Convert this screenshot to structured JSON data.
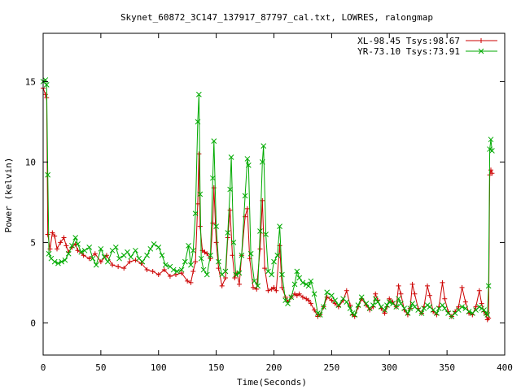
{
  "chart_data": {
    "type": "line",
    "title": "Skynet_60872_3C147_137917_87797_cal.txt, LOWRES, ralongmap",
    "xlabel": "Time(Seconds)",
    "ylabel": "Power (kelvin)",
    "xlim": [
      0,
      400
    ],
    "ylim": [
      -2,
      18
    ],
    "xticks": [
      0,
      50,
      100,
      150,
      200,
      250,
      300,
      350,
      400
    ],
    "yticks": [
      0,
      5,
      10,
      15
    ],
    "legend_position": "top-right",
    "grid": false,
    "series": [
      {
        "name": "XL-98.45 Tsys:98.67",
        "color": "#cc0000",
        "marker": "plus",
        "points": [
          [
            0,
            14.6
          ],
          [
            2,
            14.2
          ],
          [
            3,
            14.0
          ],
          [
            4,
            5.5
          ],
          [
            6,
            4.6
          ],
          [
            8,
            5.6
          ],
          [
            10,
            5.4
          ],
          [
            12,
            4.6
          ],
          [
            15,
            5.0
          ],
          [
            18,
            5.3
          ],
          [
            20,
            4.8
          ],
          [
            22,
            4.4
          ],
          [
            25,
            4.7
          ],
          [
            28,
            4.9
          ],
          [
            30,
            4.5
          ],
          [
            35,
            4.2
          ],
          [
            40,
            4.0
          ],
          [
            45,
            4.3
          ],
          [
            50,
            3.8
          ],
          [
            55,
            4.2
          ],
          [
            60,
            3.6
          ],
          [
            65,
            3.5
          ],
          [
            70,
            3.4
          ],
          [
            75,
            3.8
          ],
          [
            80,
            3.9
          ],
          [
            85,
            3.7
          ],
          [
            90,
            3.3
          ],
          [
            95,
            3.2
          ],
          [
            100,
            3.0
          ],
          [
            105,
            3.3
          ],
          [
            110,
            2.9
          ],
          [
            115,
            3.0
          ],
          [
            120,
            3.1
          ],
          [
            125,
            2.6
          ],
          [
            128,
            2.5
          ],
          [
            130,
            3.2
          ],
          [
            132,
            3.8
          ],
          [
            134,
            7.4
          ],
          [
            135,
            10.5
          ],
          [
            136,
            6.0
          ],
          [
            138,
            4.5
          ],
          [
            140,
            4.4
          ],
          [
            142,
            4.3
          ],
          [
            145,
            4.0
          ],
          [
            147,
            6.2
          ],
          [
            148,
            8.4
          ],
          [
            150,
            5.0
          ],
          [
            152,
            3.4
          ],
          [
            155,
            2.3
          ],
          [
            158,
            2.8
          ],
          [
            160,
            5.3
          ],
          [
            162,
            7.0
          ],
          [
            164,
            4.2
          ],
          [
            166,
            2.8
          ],
          [
            168,
            3.1
          ],
          [
            170,
            2.4
          ],
          [
            172,
            4.2
          ],
          [
            175,
            6.6
          ],
          [
            177,
            7.1
          ],
          [
            179,
            4.0
          ],
          [
            182,
            2.2
          ],
          [
            185,
            2.1
          ],
          [
            188,
            4.6
          ],
          [
            190,
            7.6
          ],
          [
            192,
            3.4
          ],
          [
            195,
            2.0
          ],
          [
            198,
            2.1
          ],
          [
            200,
            2.2
          ],
          [
            202,
            2.0
          ],
          [
            205,
            4.8
          ],
          [
            207,
            2.2
          ],
          [
            210,
            1.6
          ],
          [
            212,
            1.3
          ],
          [
            215,
            1.6
          ],
          [
            218,
            1.8
          ],
          [
            220,
            1.7
          ],
          [
            222,
            1.8
          ],
          [
            225,
            1.6
          ],
          [
            228,
            1.5
          ],
          [
            230,
            1.4
          ],
          [
            232,
            1.2
          ],
          [
            235,
            0.8
          ],
          [
            238,
            0.4
          ],
          [
            240,
            0.5
          ],
          [
            243,
            1.0
          ],
          [
            246,
            1.6
          ],
          [
            250,
            1.4
          ],
          [
            253,
            1.2
          ],
          [
            256,
            1.0
          ],
          [
            260,
            1.4
          ],
          [
            263,
            2.0
          ],
          [
            266,
            1.1
          ],
          [
            268,
            0.5
          ],
          [
            270,
            0.4
          ],
          [
            273,
            1.0
          ],
          [
            276,
            1.5
          ],
          [
            280,
            1.1
          ],
          [
            283,
            0.8
          ],
          [
            286,
            1.0
          ],
          [
            288,
            1.8
          ],
          [
            290,
            1.4
          ],
          [
            293,
            0.9
          ],
          [
            296,
            0.6
          ],
          [
            298,
            1.0
          ],
          [
            300,
            1.5
          ],
          [
            303,
            1.3
          ],
          [
            306,
            1.0
          ],
          [
            308,
            2.3
          ],
          [
            310,
            1.8
          ],
          [
            313,
            0.8
          ],
          [
            316,
            0.5
          ],
          [
            318,
            0.9
          ],
          [
            320,
            2.4
          ],
          [
            322,
            1.8
          ],
          [
            325,
            0.9
          ],
          [
            328,
            0.6
          ],
          [
            330,
            1.0
          ],
          [
            333,
            2.3
          ],
          [
            335,
            1.7
          ],
          [
            338,
            0.7
          ],
          [
            341,
            0.5
          ],
          [
            343,
            1.0
          ],
          [
            346,
            2.5
          ],
          [
            348,
            1.5
          ],
          [
            351,
            0.7
          ],
          [
            354,
            0.4
          ],
          [
            357,
            0.7
          ],
          [
            360,
            1.0
          ],
          [
            363,
            2.2
          ],
          [
            366,
            1.3
          ],
          [
            369,
            0.6
          ],
          [
            372,
            0.5
          ],
          [
            375,
            1.0
          ],
          [
            378,
            2.0
          ],
          [
            380,
            1.2
          ],
          [
            382,
            0.7
          ],
          [
            384,
            0.5
          ],
          [
            385,
            0.2
          ],
          [
            386,
            0.3
          ],
          [
            387,
            9.2
          ],
          [
            388,
            9.5
          ],
          [
            389,
            9.3
          ]
        ]
      },
      {
        "name": "YR-73.10 Tsys:73.91",
        "color": "#00aa00",
        "marker": "cross",
        "points": [
          [
            0,
            15.0
          ],
          [
            2,
            15.1
          ],
          [
            3,
            14.8
          ],
          [
            4,
            9.2
          ],
          [
            5,
            4.3
          ],
          [
            7,
            4.0
          ],
          [
            10,
            3.8
          ],
          [
            13,
            3.7
          ],
          [
            16,
            3.8
          ],
          [
            19,
            3.9
          ],
          [
            22,
            4.3
          ],
          [
            25,
            4.8
          ],
          [
            28,
            5.3
          ],
          [
            30,
            4.9
          ],
          [
            33,
            4.4
          ],
          [
            36,
            4.5
          ],
          [
            40,
            4.7
          ],
          [
            43,
            4.0
          ],
          [
            46,
            3.6
          ],
          [
            50,
            4.6
          ],
          [
            53,
            4.1
          ],
          [
            56,
            3.8
          ],
          [
            60,
            4.5
          ],
          [
            63,
            4.7
          ],
          [
            66,
            4.0
          ],
          [
            70,
            4.2
          ],
          [
            73,
            4.4
          ],
          [
            76,
            4.1
          ],
          [
            80,
            4.5
          ],
          [
            83,
            4.0
          ],
          [
            86,
            3.8
          ],
          [
            90,
            4.2
          ],
          [
            93,
            4.6
          ],
          [
            96,
            4.9
          ],
          [
            100,
            4.7
          ],
          [
            103,
            4.2
          ],
          [
            106,
            3.6
          ],
          [
            110,
            3.5
          ],
          [
            113,
            3.3
          ],
          [
            116,
            3.2
          ],
          [
            120,
            3.3
          ],
          [
            123,
            3.8
          ],
          [
            126,
            4.8
          ],
          [
            128,
            3.6
          ],
          [
            130,
            4.5
          ],
          [
            132,
            6.8
          ],
          [
            134,
            12.5
          ],
          [
            135,
            14.2
          ],
          [
            136,
            8.0
          ],
          [
            137,
            4.0
          ],
          [
            139,
            3.3
          ],
          [
            142,
            3.0
          ],
          [
            145,
            4.2
          ],
          [
            147,
            9.0
          ],
          [
            148,
            11.3
          ],
          [
            150,
            6.0
          ],
          [
            152,
            3.8
          ],
          [
            155,
            3.0
          ],
          [
            158,
            3.2
          ],
          [
            160,
            5.6
          ],
          [
            162,
            8.3
          ],
          [
            163,
            10.3
          ],
          [
            165,
            5.0
          ],
          [
            167,
            3.0
          ],
          [
            170,
            3.1
          ],
          [
            172,
            4.2
          ],
          [
            175,
            7.9
          ],
          [
            177,
            10.2
          ],
          [
            178,
            9.8
          ],
          [
            180,
            4.3
          ],
          [
            183,
            2.6
          ],
          [
            186,
            2.3
          ],
          [
            188,
            5.7
          ],
          [
            190,
            10.0
          ],
          [
            191,
            11.0
          ],
          [
            193,
            5.5
          ],
          [
            195,
            3.2
          ],
          [
            198,
            3.0
          ],
          [
            200,
            3.8
          ],
          [
            203,
            4.2
          ],
          [
            205,
            6.0
          ],
          [
            207,
            3.0
          ],
          [
            210,
            1.4
          ],
          [
            212,
            1.2
          ],
          [
            215,
            1.6
          ],
          [
            218,
            2.4
          ],
          [
            220,
            3.2
          ],
          [
            222,
            2.8
          ],
          [
            225,
            2.5
          ],
          [
            228,
            2.4
          ],
          [
            230,
            2.3
          ],
          [
            232,
            2.6
          ],
          [
            235,
            1.8
          ],
          [
            238,
            0.6
          ],
          [
            240,
            0.5
          ],
          [
            243,
            1.0
          ],
          [
            246,
            1.9
          ],
          [
            250,
            1.7
          ],
          [
            253,
            1.4
          ],
          [
            256,
            1.1
          ],
          [
            260,
            1.5
          ],
          [
            263,
            1.3
          ],
          [
            266,
            0.9
          ],
          [
            268,
            0.6
          ],
          [
            270,
            0.5
          ],
          [
            273,
            1.1
          ],
          [
            276,
            1.6
          ],
          [
            280,
            1.2
          ],
          [
            283,
            0.9
          ],
          [
            286,
            1.1
          ],
          [
            288,
            1.5
          ],
          [
            290,
            1.3
          ],
          [
            293,
            1.0
          ],
          [
            296,
            0.8
          ],
          [
            298,
            1.1
          ],
          [
            300,
            1.3
          ],
          [
            303,
            1.2
          ],
          [
            306,
            1.0
          ],
          [
            308,
            1.5
          ],
          [
            310,
            1.2
          ],
          [
            313,
            0.9
          ],
          [
            316,
            0.6
          ],
          [
            318,
            0.9
          ],
          [
            320,
            1.2
          ],
          [
            322,
            1.0
          ],
          [
            325,
            0.8
          ],
          [
            328,
            0.6
          ],
          [
            330,
            0.9
          ],
          [
            333,
            1.1
          ],
          [
            335,
            1.0
          ],
          [
            338,
            0.8
          ],
          [
            341,
            0.6
          ],
          [
            343,
            0.9
          ],
          [
            346,
            1.1
          ],
          [
            348,
            0.9
          ],
          [
            351,
            0.6
          ],
          [
            354,
            0.4
          ],
          [
            357,
            0.6
          ],
          [
            360,
            0.8
          ],
          [
            363,
            1.0
          ],
          [
            366,
            0.9
          ],
          [
            369,
            0.7
          ],
          [
            372,
            0.6
          ],
          [
            375,
            0.8
          ],
          [
            378,
            1.0
          ],
          [
            380,
            0.9
          ],
          [
            382,
            0.8
          ],
          [
            384,
            0.6
          ],
          [
            385,
            0.5
          ],
          [
            386,
            2.3
          ],
          [
            387,
            10.8
          ],
          [
            388,
            11.4
          ],
          [
            389,
            10.7
          ]
        ]
      }
    ]
  }
}
